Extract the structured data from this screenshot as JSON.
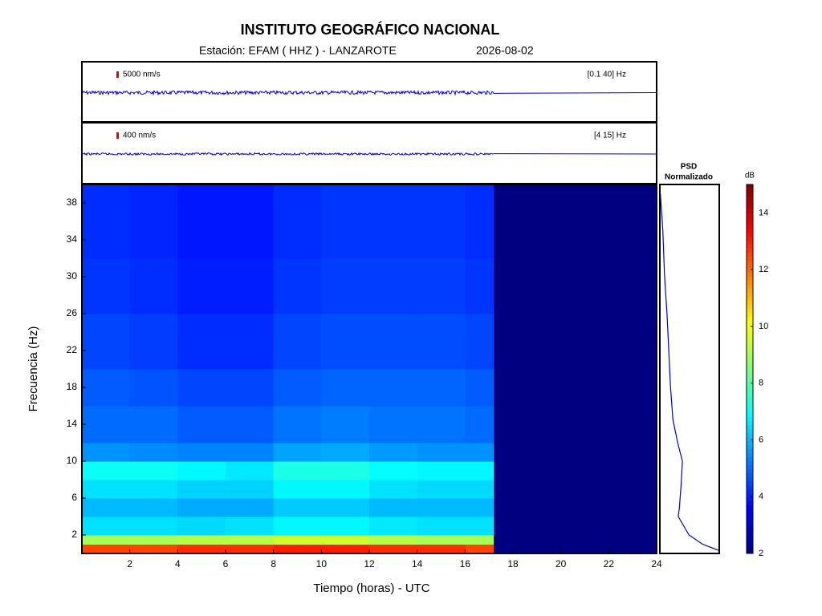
{
  "chart_data": [
    {
      "type": "heatmap",
      "title": "INSTITUTO GEOGRÁFICO NACIONAL",
      "subtitle": "Estación:  EFAM ( HHZ ) - LANZAROTE",
      "date": "2026-08-02",
      "xlabel": "Tiempo (horas) - UTC",
      "ylabel": "Frecuencia  (Hz)",
      "xlim": [
        0,
        24
      ],
      "xticks": [
        2,
        4,
        6,
        8,
        10,
        12,
        14,
        16,
        18,
        20,
        22,
        24
      ],
      "ylim": [
        0,
        40
      ],
      "yticks": [
        2,
        6,
        10,
        14,
        18,
        22,
        26,
        30,
        34,
        38
      ],
      "x_edges": [
        0,
        2,
        4,
        6,
        8,
        10,
        12,
        14,
        16,
        17.2,
        24
      ],
      "y_edges": [
        0,
        1,
        2,
        4,
        6,
        8,
        10,
        12,
        16,
        20,
        26,
        32,
        40
      ],
      "z": [
        [
          12.5,
          12.5,
          12.8,
          12.8,
          13,
          13,
          12.8,
          12.8,
          12.5,
          2
        ],
        [
          9,
          9,
          9.2,
          9.2,
          9.5,
          9.5,
          9.2,
          9,
          9,
          2
        ],
        [
          6.5,
          6.5,
          6.4,
          6.5,
          6.8,
          6.8,
          6.6,
          6.5,
          6.5,
          2
        ],
        [
          6,
          6,
          5.8,
          5.8,
          6.2,
          6.2,
          6,
          6,
          6,
          2
        ],
        [
          6.5,
          6.5,
          6.3,
          6.3,
          6.8,
          6.8,
          6.5,
          6.4,
          6.4,
          2
        ],
        [
          7,
          7,
          6.8,
          6.6,
          7.2,
          7.2,
          6.9,
          6.8,
          6.8,
          2
        ],
        [
          5.5,
          5.4,
          5.3,
          5.3,
          5.7,
          5.8,
          5.6,
          5.5,
          5.5,
          2
        ],
        [
          5,
          5,
          4.8,
          4.8,
          5.1,
          5.2,
          5.1,
          5.1,
          5,
          2
        ],
        [
          4.8,
          4.7,
          4.5,
          4.5,
          4.8,
          4.9,
          4.9,
          4.9,
          4.8,
          2
        ],
        [
          4.5,
          4.4,
          4.2,
          4.2,
          4.5,
          4.6,
          4.6,
          4.6,
          4.5,
          2
        ],
        [
          4.3,
          4.2,
          4,
          4,
          4.3,
          4.4,
          4.4,
          4.4,
          4.3,
          2
        ],
        [
          4.2,
          4.1,
          3.9,
          3.9,
          4.2,
          4.3,
          4.3,
          4.3,
          4.2,
          2
        ]
      ],
      "colorbar": {
        "label": "dB",
        "lim": [
          2,
          15
        ],
        "ticks": [
          2,
          4,
          6,
          8,
          10,
          12,
          14
        ]
      },
      "traces": [
        {
          "scale": "5000 nm/s",
          "band": "[0.1 40] Hz",
          "color": "#0000cc"
        },
        {
          "scale": "400 nm/s",
          "band": "[4 15] Hz",
          "color": "#0000cc"
        }
      ]
    },
    {
      "type": "line",
      "title": "PSD",
      "subtitle": "Normalizado",
      "color": "#0000cc",
      "xlim": [
        0,
        1
      ],
      "freq": [
        0.3,
        1,
        2,
        4,
        5,
        7.6,
        10,
        12,
        14.5,
        18,
        22,
        26,
        30,
        35,
        39
      ],
      "values": [
        1,
        0.72,
        0.49,
        0.31,
        0.33,
        0.36,
        0.38,
        0.3,
        0.22,
        0.18,
        0.15,
        0.12,
        0.08,
        0.05,
        0.01
      ]
    }
  ]
}
